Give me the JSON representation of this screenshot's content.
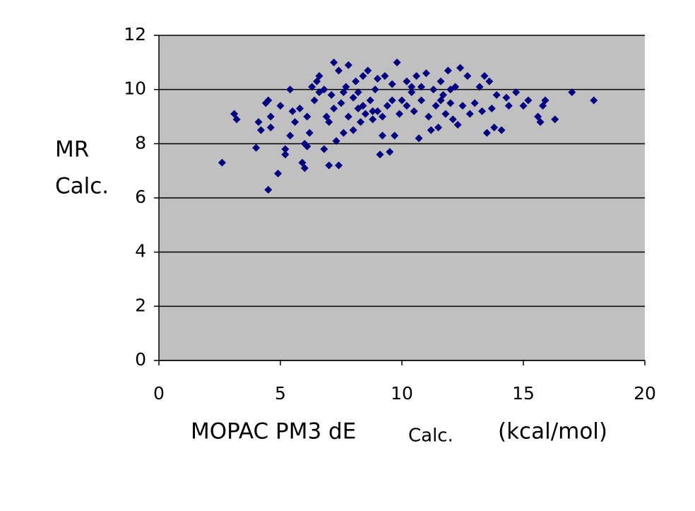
{
  "chart_data": {
    "type": "scatter",
    "xlabel": [
      "MOPAC PM3 dE",
      "Calc.",
      "(kcal/mol)"
    ],
    "ylabel": [
      "MR",
      "Calc."
    ],
    "xlim": [
      0,
      20
    ],
    "xticks": [
      0,
      5,
      10,
      15,
      20
    ],
    "ylim": [
      0,
      12
    ],
    "yticks": [
      0,
      2,
      4,
      6,
      8,
      10,
      12
    ],
    "grid": true,
    "background": "#c0c0c0",
    "series": [
      {
        "color": "#000080",
        "x": [
          2.6,
          3.1,
          3.2,
          4.0,
          4.1,
          4.2,
          4.4,
          4.5,
          4.5,
          4.6,
          4.6,
          4.9,
          5.0,
          5.2,
          5.2,
          5.4,
          5.4,
          5.5,
          5.6,
          5.8,
          5.9,
          6.0,
          6.0,
          6.1,
          6.1,
          6.2,
          6.3,
          6.4,
          6.5,
          6.6,
          6.6,
          6.8,
          6.9,
          7.0,
          7.0,
          7.1,
          7.2,
          7.3,
          7.4,
          7.4,
          7.5,
          7.6,
          7.7,
          7.8,
          7.8,
          8.0,
          8.0,
          8.1,
          8.2,
          8.3,
          8.4,
          8.5,
          8.6,
          8.7,
          8.8,
          8.9,
          9.0,
          9.1,
          9.2,
          9.3,
          9.4,
          9.5,
          9.6,
          9.7,
          9.8,
          9.9,
          10.0,
          10.2,
          10.4,
          10.5,
          10.6,
          10.7,
          10.8,
          11.0,
          11.1,
          11.2,
          11.3,
          11.4,
          11.5,
          11.6,
          11.7,
          11.8,
          11.9,
          12.0,
          12.1,
          12.2,
          12.3,
          12.4,
          12.5,
          12.7,
          12.8,
          13.0,
          13.2,
          13.3,
          13.4,
          13.5,
          13.6,
          13.7,
          13.8,
          13.9,
          14.1,
          14.3,
          14.4,
          14.7,
          15.0,
          15.2,
          15.6,
          15.7,
          15.8,
          15.9,
          16.3,
          17.0,
          17.9,
          6.8,
          7.2,
          7.6,
          8.4,
          8.8,
          9.2,
          9.6,
          10.4,
          10.8,
          11.6,
          12.0,
          8.2,
          9.0,
          10.2
        ],
        "values": [
          7.3,
          9.1,
          8.9,
          7.85,
          8.8,
          8.5,
          9.5,
          9.6,
          6.3,
          9.0,
          8.6,
          6.9,
          9.4,
          7.8,
          7.6,
          10.0,
          8.3,
          9.2,
          8.8,
          9.3,
          7.3,
          7.1,
          8.0,
          7.9,
          9.0,
          8.4,
          10.1,
          9.6,
          10.3,
          9.9,
          10.5,
          7.8,
          9.0,
          8.8,
          7.2,
          9.8,
          11.0,
          8.1,
          7.2,
          10.7,
          9.5,
          8.4,
          10.1,
          9.0,
          10.9,
          9.7,
          8.5,
          10.3,
          9.3,
          8.8,
          10.5,
          9.1,
          10.7,
          9.6,
          8.9,
          10.0,
          9.2,
          7.6,
          8.3,
          10.5,
          9.4,
          7.7,
          10.2,
          8.3,
          11.0,
          9.1,
          9.6,
          10.3,
          9.9,
          9.2,
          10.5,
          8.2,
          9.6,
          10.6,
          9.0,
          8.5,
          10.0,
          9.4,
          8.6,
          10.3,
          9.8,
          9.1,
          10.7,
          9.5,
          8.9,
          10.1,
          8.7,
          10.8,
          9.4,
          10.5,
          9.1,
          9.5,
          10.1,
          9.2,
          10.5,
          8.4,
          10.3,
          9.3,
          8.6,
          9.8,
          8.5,
          9.7,
          9.4,
          9.9,
          9.4,
          9.6,
          9.0,
          8.8,
          9.4,
          9.6,
          8.9,
          9.9,
          9.6,
          10.0,
          9.3,
          9.9,
          9.4,
          9.2,
          9.0,
          9.6,
          10.1,
          10.1,
          9.6,
          10.0,
          9.9,
          10.4,
          9.4
        ]
      }
    ]
  }
}
